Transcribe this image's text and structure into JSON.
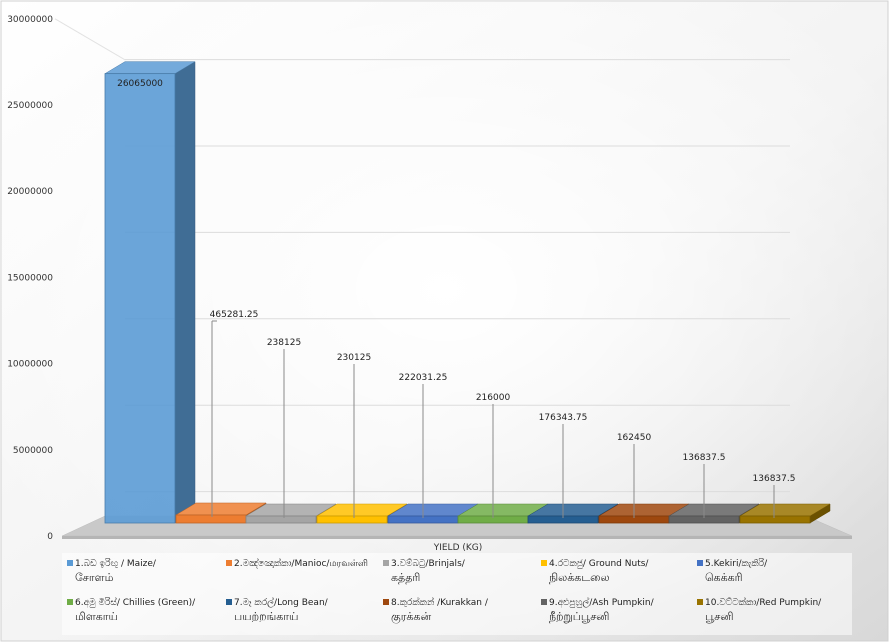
{
  "chart_data": {
    "type": "bar",
    "style": "3d-column",
    "xlabel": "YIELD (KG)",
    "ylabel": "",
    "ylim": [
      0,
      30000000
    ],
    "yticks": [
      "0",
      "5000000",
      "10000000",
      "15000000",
      "20000000",
      "25000000",
      "30000000"
    ],
    "grid": true,
    "legend_position": "bottom",
    "series": [
      {
        "name_line1": "1.බඩ ඉරිඟු / Maize/",
        "name_line2": "சோளம்",
        "value": 26065000,
        "label": "26065000",
        "color": "#5b9bd5"
      },
      {
        "name_line1": "2.මඤ්ඤොක්කා/Manioc/மரவள்ளி",
        "name_line2": "",
        "value": 465281.25,
        "label": "465281.25",
        "color": "#ed7d31"
      },
      {
        "name_line1": "3.වම්බටු/Brinjals/",
        "name_line2": "கத்தரி",
        "value": 238125,
        "label": "238125",
        "color": "#a5a5a5"
      },
      {
        "name_line1": "4.රටකජු/ Ground Nuts/",
        "name_line2": "நிலக்கடலை",
        "value": 230125,
        "label": "230125",
        "color": "#ffc000"
      },
      {
        "name_line1": "5.Kekiri/කැකිරි/",
        "name_line2": "கெக்கரி",
        "value": 222031.25,
        "label": "222031.25",
        "color": "#4472c4"
      },
      {
        "name_line1": "6.අමු මිරිස්/ Chillies (Green)/",
        "name_line2": "மிளகாய்",
        "value": 216000,
        "label": "216000",
        "color": "#70ad47"
      },
      {
        "name_line1": "7.මෑ කරල්/Long Bean/",
        "name_line2": "பயற்றங்காய்",
        "value": 176343.75,
        "label": "176343.75",
        "color": "#255e91"
      },
      {
        "name_line1": "8.කුරක්කන් /Kurakkan /",
        "name_line2": "குரக்கன்",
        "value": 162450,
        "label": "162450",
        "color": "#9e480e"
      },
      {
        "name_line1": "9.අළුපුහුල්/Ash Pumpkin/",
        "name_line2": "நீற்றுப்பூசனி",
        "value": 136837.5,
        "label": "136837.5",
        "color": "#636363"
      },
      {
        "name_line1": "10.වට්ටක්කා/Red Pumpkin/",
        "name_line2": "பூசனி",
        "value": 136837.5,
        "label": "136837.5",
        "color": "#997300"
      }
    ]
  }
}
